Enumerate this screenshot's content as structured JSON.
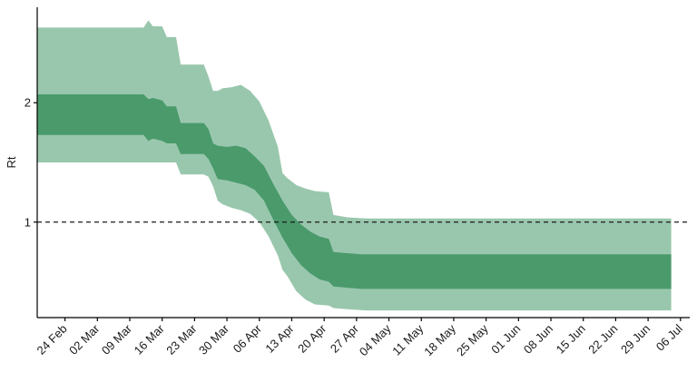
{
  "chart_data": {
    "type": "area",
    "title": "",
    "xlabel": "",
    "ylabel": "Rt",
    "x_type": "date",
    "xlim": [
      "2020-02-18",
      "2020-07-08"
    ],
    "ylim": [
      0.2,
      2.8
    ],
    "grid": false,
    "legend": "none",
    "x_ticks": [
      {
        "date": "2020-02-24",
        "label": "24 Feb"
      },
      {
        "date": "2020-03-02",
        "label": "02 Mar"
      },
      {
        "date": "2020-03-09",
        "label": "09 Mar"
      },
      {
        "date": "2020-03-16",
        "label": "16 Mar"
      },
      {
        "date": "2020-03-23",
        "label": "23 Mar"
      },
      {
        "date": "2020-03-30",
        "label": "30 Mar"
      },
      {
        "date": "2020-04-06",
        "label": "06 Apr"
      },
      {
        "date": "2020-04-13",
        "label": "13 Apr"
      },
      {
        "date": "2020-04-20",
        "label": "20 Apr"
      },
      {
        "date": "2020-04-27",
        "label": "27 Apr"
      },
      {
        "date": "2020-05-04",
        "label": "04 May"
      },
      {
        "date": "2020-05-11",
        "label": "11 May"
      },
      {
        "date": "2020-05-18",
        "label": "18 May"
      },
      {
        "date": "2020-05-25",
        "label": "25 May"
      },
      {
        "date": "2020-06-01",
        "label": "01 Jun"
      },
      {
        "date": "2020-06-08",
        "label": "08 Jun"
      },
      {
        "date": "2020-06-15",
        "label": "15 Jun"
      },
      {
        "date": "2020-06-22",
        "label": "22 Jun"
      },
      {
        "date": "2020-06-29",
        "label": "29 Jun"
      },
      {
        "date": "2020-07-06",
        "label": "06 Jul"
      }
    ],
    "y_ticks": [
      {
        "value": 1,
        "label": "1"
      },
      {
        "value": 2,
        "label": "2"
      }
    ],
    "reference_line": {
      "y": 1,
      "style": "dashed"
    },
    "series": [
      {
        "kind": "outer-band",
        "color": "#99c7ad",
        "points": [
          {
            "x": "2020-02-18",
            "lower": 1.5,
            "upper": 2.63
          },
          {
            "x": "2020-03-12",
            "lower": 1.5,
            "upper": 2.63
          },
          {
            "x": "2020-03-13",
            "lower": 1.5,
            "upper": 2.69
          },
          {
            "x": "2020-03-14",
            "lower": 1.5,
            "upper": 2.64
          },
          {
            "x": "2020-03-16",
            "lower": 1.5,
            "upper": 2.64
          },
          {
            "x": "2020-03-17",
            "lower": 1.5,
            "upper": 2.55
          },
          {
            "x": "2020-03-19",
            "lower": 1.5,
            "upper": 2.55
          },
          {
            "x": "2020-03-20",
            "lower": 1.4,
            "upper": 2.32
          },
          {
            "x": "2020-03-25",
            "lower": 1.4,
            "upper": 2.32
          },
          {
            "x": "2020-03-26",
            "lower": 1.38,
            "upper": 2.22
          },
          {
            "x": "2020-03-27",
            "lower": 1.3,
            "upper": 2.1
          },
          {
            "x": "2020-03-28",
            "lower": 1.18,
            "upper": 2.1
          },
          {
            "x": "2020-03-29",
            "lower": 1.15,
            "upper": 2.12
          },
          {
            "x": "2020-03-31",
            "lower": 1.12,
            "upper": 2.13
          },
          {
            "x": "2020-04-02",
            "lower": 1.1,
            "upper": 2.15
          },
          {
            "x": "2020-04-04",
            "lower": 1.07,
            "upper": 2.1
          },
          {
            "x": "2020-04-06",
            "lower": 1.0,
            "upper": 2.01
          },
          {
            "x": "2020-04-08",
            "lower": 0.88,
            "upper": 1.85
          },
          {
            "x": "2020-04-10",
            "lower": 0.72,
            "upper": 1.63
          },
          {
            "x": "2020-04-11",
            "lower": 0.6,
            "upper": 1.41
          },
          {
            "x": "2020-04-12",
            "lower": 0.55,
            "upper": 1.37
          },
          {
            "x": "2020-04-14",
            "lower": 0.42,
            "upper": 1.31
          },
          {
            "x": "2020-04-16",
            "lower": 0.35,
            "upper": 1.28
          },
          {
            "x": "2020-04-18",
            "lower": 0.31,
            "upper": 1.26
          },
          {
            "x": "2020-04-21",
            "lower": 0.3,
            "upper": 1.25
          },
          {
            "x": "2020-04-22",
            "lower": 0.28,
            "upper": 1.06
          },
          {
            "x": "2020-04-25",
            "lower": 0.27,
            "upper": 1.04
          },
          {
            "x": "2020-04-29",
            "lower": 0.26,
            "upper": 1.03
          },
          {
            "x": "2020-07-04",
            "lower": 0.26,
            "upper": 1.03
          }
        ]
      },
      {
        "kind": "inner-band",
        "color": "#4a9a6c",
        "points": [
          {
            "x": "2020-02-18",
            "lower": 1.73,
            "upper": 2.07
          },
          {
            "x": "2020-03-12",
            "lower": 1.73,
            "upper": 2.07
          },
          {
            "x": "2020-03-13",
            "lower": 1.68,
            "upper": 2.03
          },
          {
            "x": "2020-03-14",
            "lower": 1.7,
            "upper": 2.04
          },
          {
            "x": "2020-03-16",
            "lower": 1.68,
            "upper": 2.02
          },
          {
            "x": "2020-03-17",
            "lower": 1.66,
            "upper": 1.97
          },
          {
            "x": "2020-03-19",
            "lower": 1.66,
            "upper": 1.97
          },
          {
            "x": "2020-03-20",
            "lower": 1.57,
            "upper": 1.83
          },
          {
            "x": "2020-03-25",
            "lower": 1.57,
            "upper": 1.83
          },
          {
            "x": "2020-03-26",
            "lower": 1.53,
            "upper": 1.78
          },
          {
            "x": "2020-03-27",
            "lower": 1.45,
            "upper": 1.66
          },
          {
            "x": "2020-03-28",
            "lower": 1.36,
            "upper": 1.64
          },
          {
            "x": "2020-03-30",
            "lower": 1.35,
            "upper": 1.63
          },
          {
            "x": "2020-04-01",
            "lower": 1.33,
            "upper": 1.64
          },
          {
            "x": "2020-04-03",
            "lower": 1.31,
            "upper": 1.62
          },
          {
            "x": "2020-04-05",
            "lower": 1.27,
            "upper": 1.55
          },
          {
            "x": "2020-04-07",
            "lower": 1.18,
            "upper": 1.47
          },
          {
            "x": "2020-04-09",
            "lower": 1.02,
            "upper": 1.32
          },
          {
            "x": "2020-04-11",
            "lower": 0.87,
            "upper": 1.18
          },
          {
            "x": "2020-04-13",
            "lower": 0.74,
            "upper": 1.06
          },
          {
            "x": "2020-04-15",
            "lower": 0.64,
            "upper": 0.98
          },
          {
            "x": "2020-04-17",
            "lower": 0.57,
            "upper": 0.92
          },
          {
            "x": "2020-04-19",
            "lower": 0.52,
            "upper": 0.88
          },
          {
            "x": "2020-04-21",
            "lower": 0.5,
            "upper": 0.86
          },
          {
            "x": "2020-04-22",
            "lower": 0.46,
            "upper": 0.75
          },
          {
            "x": "2020-04-25",
            "lower": 0.45,
            "upper": 0.74
          },
          {
            "x": "2020-04-28",
            "lower": 0.44,
            "upper": 0.73
          },
          {
            "x": "2020-07-04",
            "lower": 0.44,
            "upper": 0.73
          }
        ]
      }
    ]
  }
}
